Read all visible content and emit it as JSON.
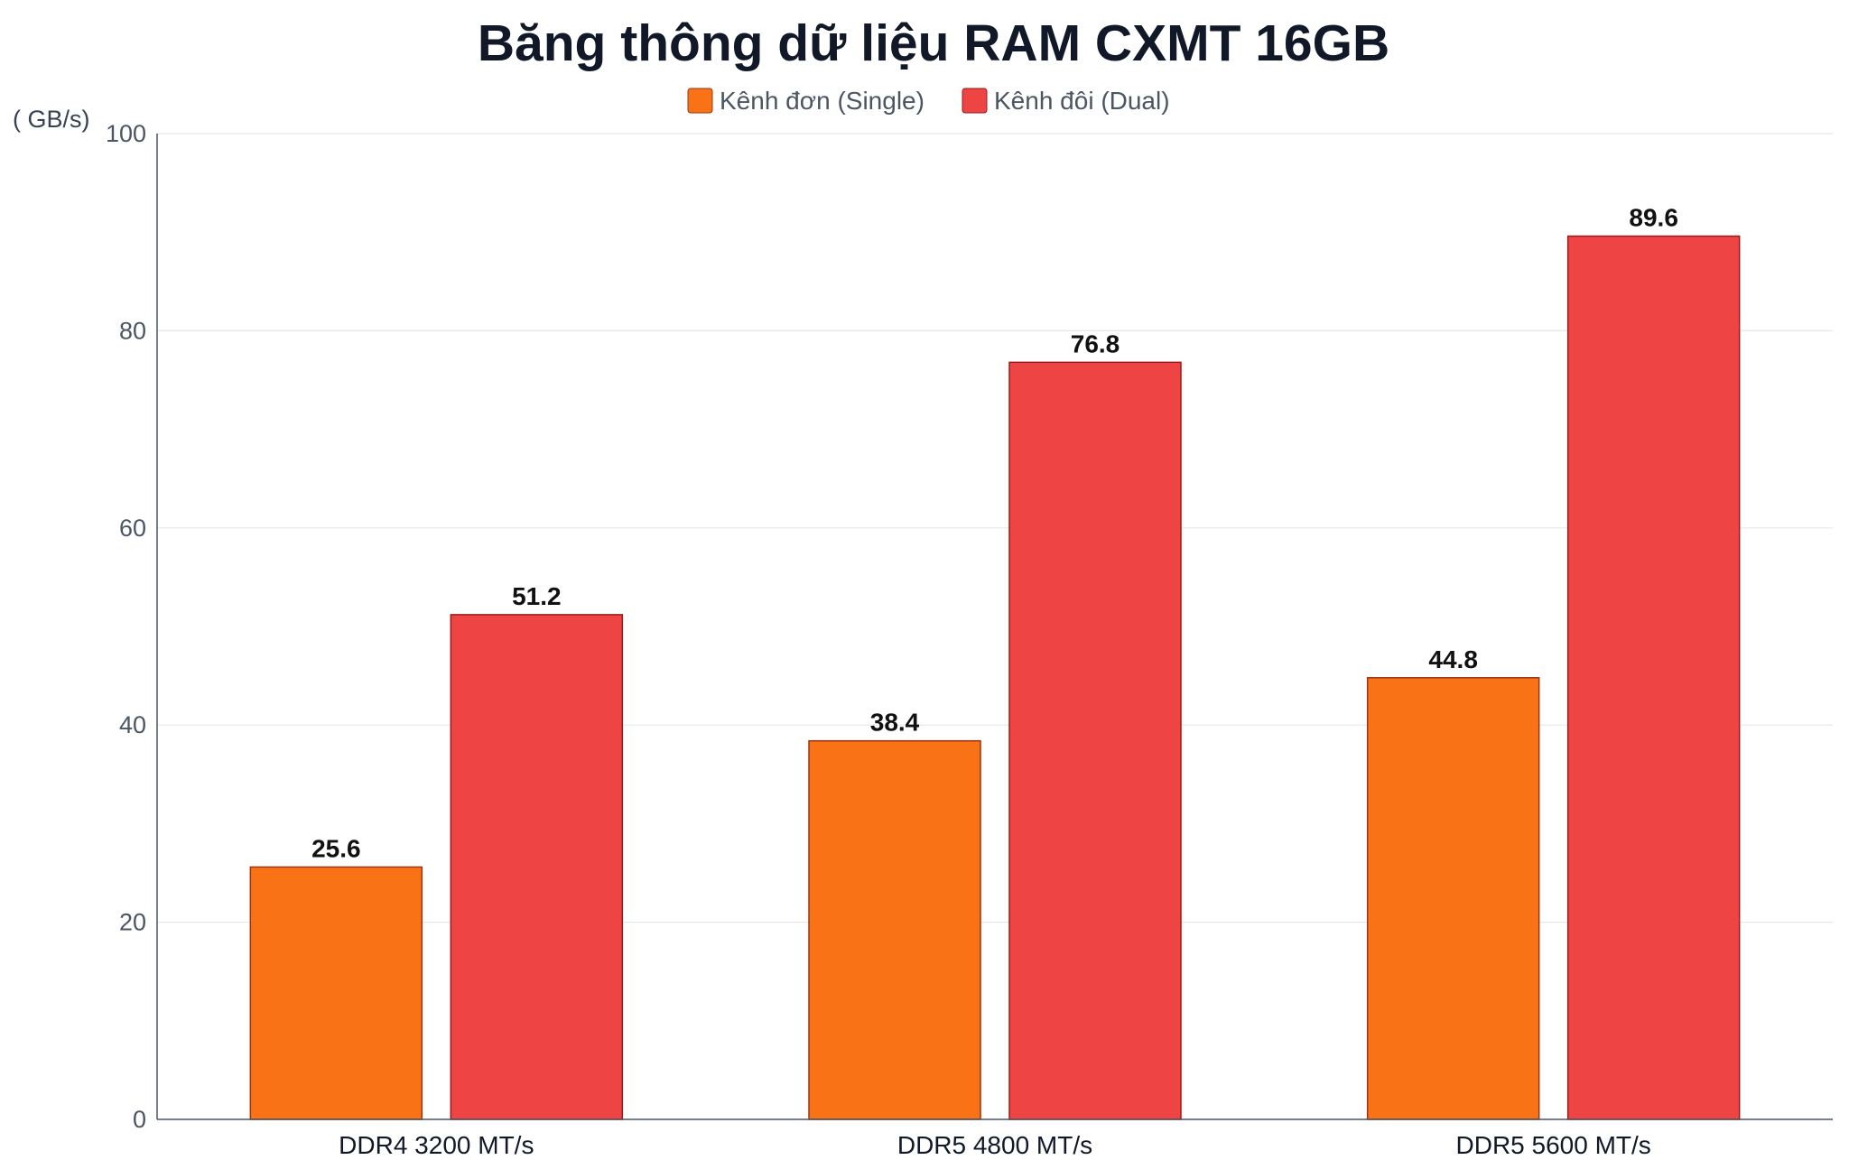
{
  "chart_data": {
    "type": "bar",
    "title": "Băng thông dữ liệu RAM CXMT 16GB",
    "ylabel": "( GB/s)",
    "xlabel": "",
    "categories": [
      "DDR4 3200 MT/s",
      "DDR5 4800 MT/s",
      "DDR5 5600 MT/s"
    ],
    "series": [
      {
        "name": "Kênh đơn (Single)",
        "values": [
          25.6,
          38.4,
          44.8
        ],
        "color": "#f97316"
      },
      {
        "name": "Kênh đôi (Dual)",
        "values": [
          51.2,
          76.8,
          89.6
        ],
        "color": "#ef4444"
      }
    ],
    "ylim": [
      0,
      100
    ],
    "yticks": [
      "0",
      "20",
      "40",
      "60",
      "80",
      "100"
    ],
    "grid": true,
    "legend_position": "top-center",
    "data_labels": true
  }
}
